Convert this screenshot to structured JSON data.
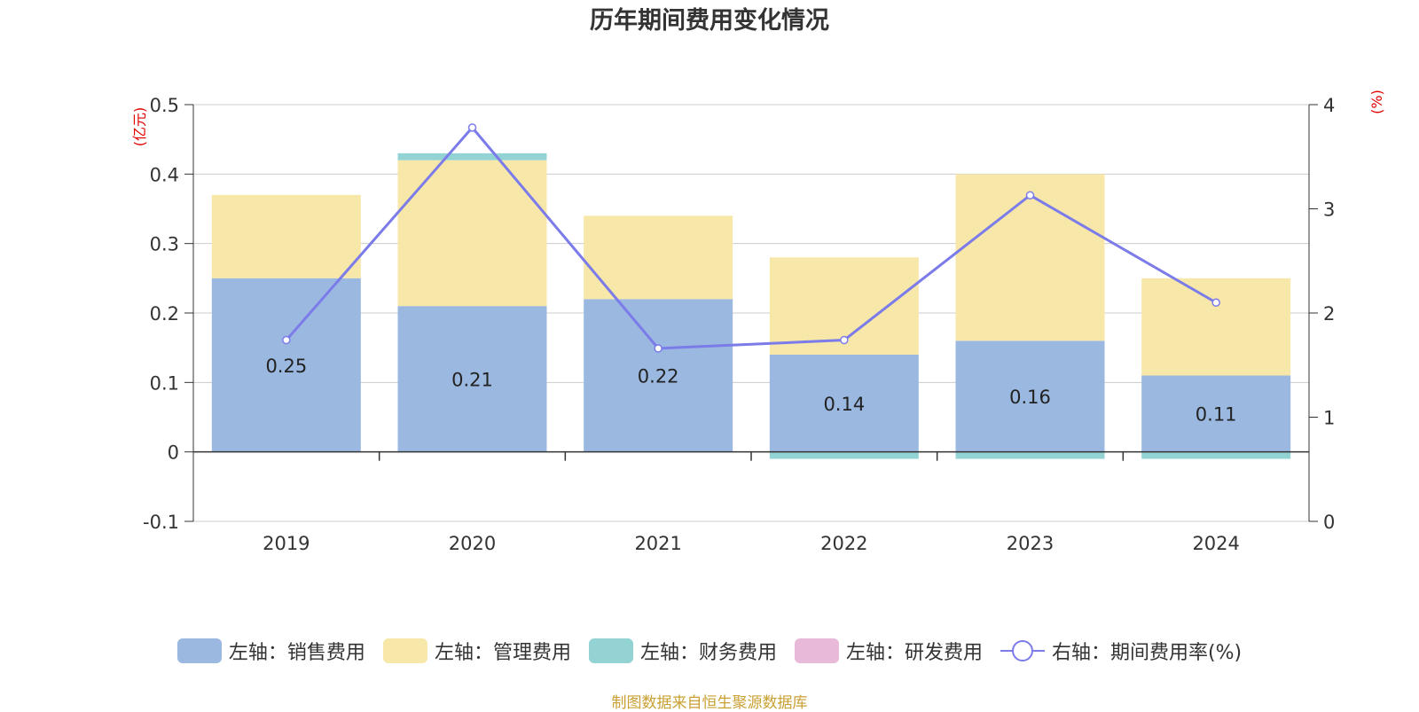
{
  "chart_data": {
    "type": "bar",
    "title": "历年期间费用变化情况",
    "y_left_unit": "(亿元)",
    "y_right_unit": "(%)",
    "categories": [
      "2019",
      "2020",
      "2021",
      "2022",
      "2023",
      "2024"
    ],
    "y_left_ticks": [
      "0.5",
      "0.4",
      "0.3",
      "0.2",
      "0.1",
      "0",
      "-0.1"
    ],
    "y_right_ticks": [
      "4",
      "3",
      "2",
      "1",
      "0"
    ],
    "ylim_left": [
      -0.1,
      0.5
    ],
    "ylim_right": [
      0,
      4
    ],
    "grid": true,
    "legend_position": "bottom",
    "series": [
      {
        "name": "左轴：销售费用",
        "axis": "left",
        "type": "bar",
        "color": "#9bb8e0",
        "values": [
          0.25,
          0.21,
          0.22,
          0.14,
          0.16,
          0.11
        ],
        "show_labels": true
      },
      {
        "name": "左轴：管理费用",
        "axis": "left",
        "type": "bar",
        "color": "#f7e7a9",
        "values": [
          0.12,
          0.21,
          0.12,
          0.14,
          0.24,
          0.14
        ]
      },
      {
        "name": "左轴：财务费用",
        "axis": "left",
        "type": "bar",
        "color": "#94d3d4",
        "values": [
          0,
          0.01,
          0,
          -0.01,
          -0.01,
          -0.01
        ]
      },
      {
        "name": "左轴：研发费用",
        "axis": "left",
        "type": "bar",
        "color": "#e8b9d9",
        "values": [
          0,
          0,
          0,
          0,
          0,
          0
        ]
      },
      {
        "name": "右轴：期间费用率(%)",
        "axis": "right",
        "type": "line",
        "color": "#7b7bea",
        "values": [
          1.74,
          3.78,
          1.66,
          1.74,
          3.13,
          2.1
        ]
      }
    ],
    "data_labels": [
      "0.25",
      "0.21",
      "0.22",
      "0.14",
      "0.16",
      "0.11"
    ]
  },
  "source": "制图数据来自恒生聚源数据库"
}
